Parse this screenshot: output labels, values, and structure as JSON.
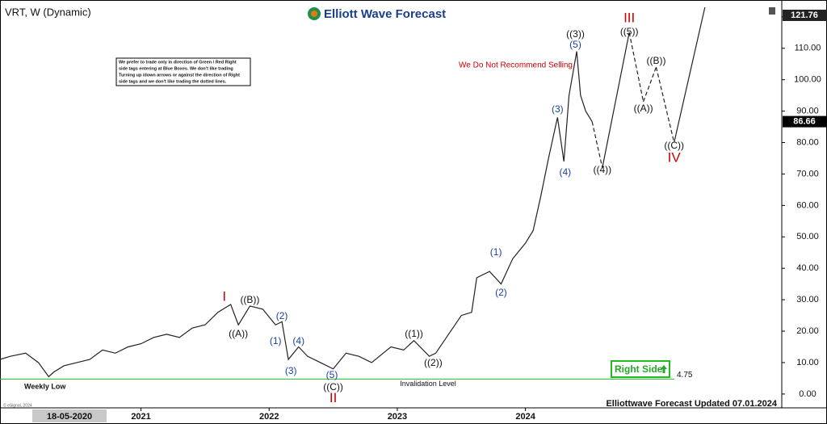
{
  "chart_data": {
    "type": "line",
    "title": "VRT, W (Dynamic)",
    "logo": "Elliott Wave Forecast",
    "note_lines": [
      "We prefer to trade only in direction of Green / Red Right",
      "side tags entering at Blue Boxes. We don't like trading",
      "Turning up /down arrows or against the direction of Right",
      "side tags and we don't like trading the dotted lines."
    ],
    "warning": "We Do Not Recommend Selling",
    "weekly_low_label": "Weekly Low",
    "right_side_label": "Right Side",
    "footer": "Elliottwave Forecast Updated 07.01.2024",
    "copyright": "© eSignal, 2024",
    "cursor_label": "18-05-2020",
    "xlim": [
      2019.9,
      2026.0
    ],
    "xticks": [
      2021,
      2022,
      2023,
      2024
    ],
    "ylim": [
      -4.4,
      123.3
    ],
    "yticks": [
      {
        "value": 0,
        "label": "0.00"
      },
      {
        "value": 10,
        "label": "10.00"
      },
      {
        "value": 20,
        "label": "20.00"
      },
      {
        "value": 30,
        "label": "30.00"
      },
      {
        "value": 40,
        "label": "40.00"
      },
      {
        "value": 50,
        "label": "50.00"
      },
      {
        "value": 60,
        "label": "60.00"
      },
      {
        "value": 70,
        "label": "70.00"
      },
      {
        "value": 80,
        "label": "80.00"
      },
      {
        "value": 90,
        "label": "90.00"
      },
      {
        "value": 100,
        "label": "100.00"
      },
      {
        "value": 110,
        "label": "110.00"
      },
      {
        "value": 120,
        "label": "120.00"
      }
    ],
    "last_price": 86.66,
    "high_tag": 121.76,
    "invalidation": {
      "value": 4.75,
      "text": "Invalidation Level",
      "color": "#22bb22"
    },
    "series": [
      {
        "color": "#222222",
        "x": [
          2019.9,
          2019.98,
          2020.1,
          2020.2,
          2020.28,
          2020.32,
          2020.4,
          2020.5,
          2020.6,
          2020.7,
          2020.8,
          2020.9,
          2021.0,
          2021.1,
          2021.2,
          2021.3,
          2021.4,
          2021.5,
          2021.6,
          2021.7,
          2021.76,
          2021.85,
          2021.95,
          2022.05,
          2022.1,
          2022.15,
          2022.23,
          2022.3,
          2022.4,
          2022.5,
          2022.6,
          2022.7,
          2022.8,
          2022.95,
          2023.05,
          2023.13,
          2023.25,
          2023.3,
          2023.4,
          2023.5,
          2023.58,
          2023.62,
          2023.72,
          2023.81,
          2023.9,
          2024.0,
          2024.06,
          2024.12,
          2024.18,
          2024.25,
          2024.3,
          2024.34,
          2024.4,
          2024.43,
          2024.47,
          2024.52
        ],
        "values": [
          11,
          12,
          13,
          10,
          5.5,
          7,
          9,
          10,
          11,
          14,
          13,
          15,
          16,
          18,
          19,
          18,
          21,
          22,
          26,
          28.5,
          22,
          28,
          27,
          22,
          23,
          11,
          15,
          12,
          10,
          8,
          13,
          12,
          10,
          15,
          14,
          17,
          12,
          13,
          19,
          25,
          26,
          37,
          39,
          35,
          43,
          48,
          52,
          63,
          75,
          88,
          74,
          95,
          109,
          95,
          90,
          86.66
        ]
      },
      {
        "color": "#222222",
        "x": [
          2024.52,
          2024.6,
          2024.81,
          2024.92,
          2025.02,
          2025.16,
          2025.4
        ],
        "values": [
          86.66,
          72,
          115,
          93,
          104,
          80,
          123
        ],
        "segment_styles": [
          "dashed",
          "solid",
          "dashed",
          "dashed",
          "dashed",
          "solid"
        ]
      }
    ],
    "annotations": [
      {
        "text": "I",
        "x": 2021.65,
        "y": 30.8,
        "color": "#cc0000"
      },
      {
        "text": "((B))",
        "x": 2021.85,
        "y": 29.8,
        "color": "#111111"
      },
      {
        "text": "((A))",
        "x": 2021.76,
        "y": 19,
        "color": "#111111"
      },
      {
        "text": "(2)",
        "x": 2022.1,
        "y": 24.7,
        "color": "#1a3fa8"
      },
      {
        "text": "(1)",
        "x": 2022.05,
        "y": 16.7,
        "color": "#1a3fa8"
      },
      {
        "text": "(4)",
        "x": 2022.23,
        "y": 16.7,
        "color": "#1a3fa8"
      },
      {
        "text": "(3)",
        "x": 2022.17,
        "y": 7.2,
        "color": "#1a3fa8"
      },
      {
        "text": "(5)",
        "x": 2022.49,
        "y": 5.9,
        "color": "#1a3fa8"
      },
      {
        "text": "((C))",
        "x": 2022.5,
        "y": 2.1,
        "color": "#111111"
      },
      {
        "text": "II",
        "x": 2022.5,
        "y": -1.5,
        "color": "#cc0000"
      },
      {
        "text": "((1))",
        "x": 2023.13,
        "y": 19,
        "color": "#111111"
      },
      {
        "text": "((2))",
        "x": 2023.28,
        "y": 9.8,
        "color": "#111111"
      },
      {
        "text": "(1)",
        "x": 2023.77,
        "y": 45,
        "color": "#1a3fa8"
      },
      {
        "text": "(2)",
        "x": 2023.81,
        "y": 32.1,
        "color": "#1a3fa8"
      },
      {
        "text": "(3)",
        "x": 2024.25,
        "y": 90.4,
        "color": "#1a3fa8"
      },
      {
        "text": "(4)",
        "x": 2024.31,
        "y": 70.4,
        "color": "#1a3fa8"
      },
      {
        "text": "(5)",
        "x": 2024.39,
        "y": 111,
        "color": "#1a3fa8"
      },
      {
        "text": "((3))",
        "x": 2024.39,
        "y": 114.3,
        "color": "#111111"
      },
      {
        "text": "III",
        "x": 2024.81,
        "y": 119.5,
        "color": "#cc0000"
      },
      {
        "text": "((5))",
        "x": 2024.81,
        "y": 115.1,
        "color": "#111111"
      },
      {
        "text": "((4))",
        "x": 2024.6,
        "y": 71.2,
        "color": "#111111"
      },
      {
        "text": "((A))",
        "x": 2024.92,
        "y": 90.7,
        "color": "#111111"
      },
      {
        "text": "((B))",
        "x": 2025.02,
        "y": 105.9,
        "color": "#111111"
      },
      {
        "text": "((C))",
        "x": 2025.16,
        "y": 78.9,
        "color": "#111111"
      },
      {
        "text": "IV",
        "x": 2025.16,
        "y": 75,
        "color": "#cc0000"
      }
    ]
  }
}
